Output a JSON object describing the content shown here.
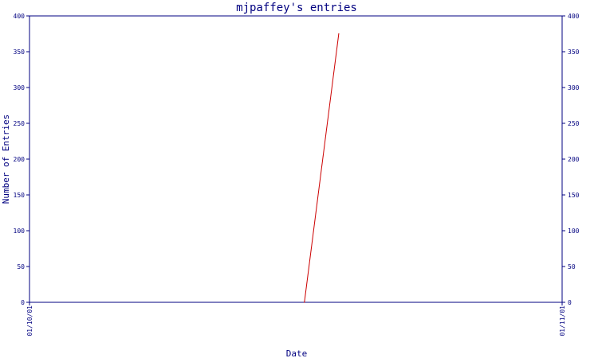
{
  "chart_data": {
    "type": "line",
    "title": "mjpaffey's entries",
    "xlabel": "Date",
    "ylabel": "Number of Entries",
    "x_tick_labels": [
      "01/10/01",
      "01/11/01"
    ],
    "x_range": [
      "01/10/01",
      "01/11/01"
    ],
    "ylim": [
      0,
      400
    ],
    "y_ticks": [
      0,
      50,
      100,
      150,
      200,
      250,
      300,
      350,
      400
    ],
    "grid": false,
    "right_axis_mirrors_left": true,
    "series": [
      {
        "color": "#cc0000",
        "points": [
          {
            "x": "01/10/17",
            "y": 0
          },
          {
            "x": "01/10/19",
            "y": 375
          }
        ]
      }
    ]
  },
  "colors": {
    "axis": "#000080",
    "text": "#000080",
    "series": "#cc0000",
    "background": "#ffffff"
  }
}
